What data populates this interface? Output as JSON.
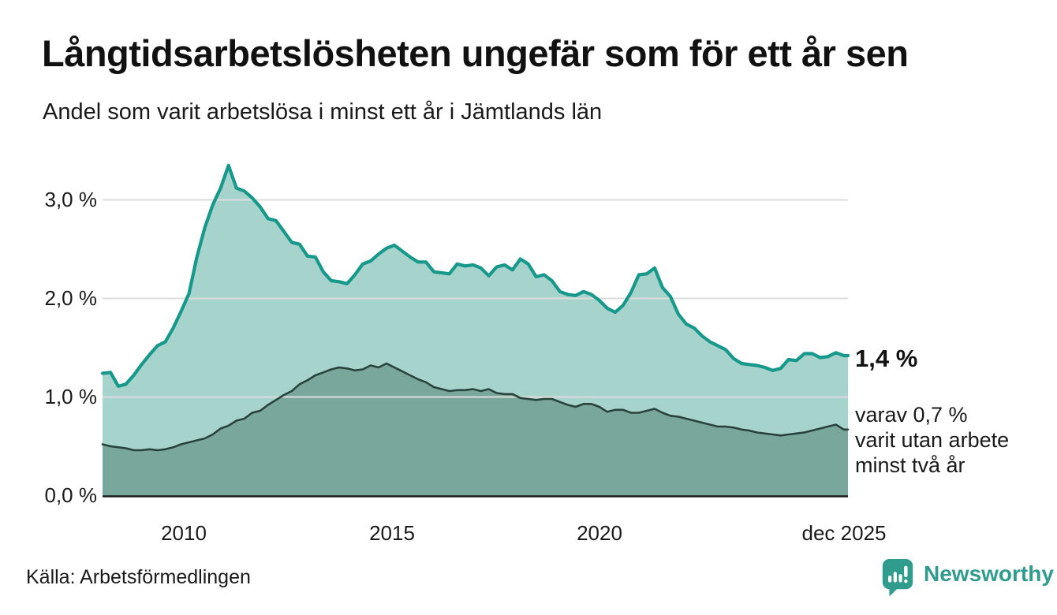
{
  "header": {
    "title": "Långtidsarbetslösheten ungefär som för ett år sen",
    "subtitle": "Andel som varit arbetslösa i minst ett år i Jämtlands län"
  },
  "annotations": {
    "latest_total": "1,4 %",
    "note_line1": "varav 0,7 %",
    "note_line2": "varit utan arbete",
    "note_line3": "minst två år"
  },
  "footer": {
    "source": "Källa: Arbetsförmedlingen",
    "brand": "Newsworthy",
    "brand_icon": "newsworthy-speech-bubble-barchart-icon"
  },
  "colors": {
    "total_line": "#16988a",
    "total_fill": "#a6d3cb",
    "two_year_line": "#28433c",
    "two_year_fill": "#7aa79c",
    "gridline": "#dcdcdc",
    "axis": "#1a1a1a",
    "brand": "#2f9c8e"
  },
  "chart_data": {
    "type": "area",
    "title": "Långtidsarbetslösheten ungefär som för ett år sen",
    "subtitle": "Andel som varit arbetslösa i minst ett år i Jämtlands län",
    "unit": "%",
    "grid": "horizontal",
    "legend": "none (direct end labels)",
    "x_domain": [
      2008.05,
      2025.98
    ],
    "y_domain": [
      0,
      3.5
    ],
    "x_ticks": [
      {
        "label": "2010",
        "year": 2010
      },
      {
        "label": "2015",
        "year": 2015
      },
      {
        "label": "2020",
        "year": 2020
      },
      {
        "label": "dec 2025",
        "year": 2025.88
      }
    ],
    "y_ticks": [
      {
        "label": "0,0 %",
        "value": 0
      },
      {
        "label": "1,0 %",
        "value": 1
      },
      {
        "label": "2,0 %",
        "value": 2
      },
      {
        "label": "3,0 %",
        "value": 3
      }
    ],
    "x_years": [
      2008.05,
      2008.24,
      2008.43,
      2008.61,
      2008.8,
      2008.99,
      2009.18,
      2009.37,
      2009.56,
      2009.75,
      2009.94,
      2010.13,
      2010.32,
      2010.51,
      2010.7,
      2010.89,
      2011.08,
      2011.27,
      2011.46,
      2011.65,
      2011.84,
      2012.03,
      2012.22,
      2012.41,
      2012.6,
      2012.79,
      2012.98,
      2013.17,
      2013.36,
      2013.55,
      2013.74,
      2013.93,
      2014.12,
      2014.31,
      2014.5,
      2014.69,
      2014.88,
      2015.07,
      2015.26,
      2015.45,
      2015.64,
      2015.83,
      2016.02,
      2016.21,
      2016.39,
      2016.58,
      2016.77,
      2016.96,
      2017.15,
      2017.34,
      2017.53,
      2017.72,
      2017.91,
      2018.1,
      2018.29,
      2018.48,
      2018.67,
      2018.86,
      2019.05,
      2019.24,
      2019.43,
      2019.62,
      2019.81,
      2020.0,
      2020.19,
      2020.38,
      2020.57,
      2020.76,
      2020.95,
      2021.14,
      2021.33,
      2021.52,
      2021.71,
      2021.9,
      2022.09,
      2022.28,
      2022.47,
      2022.66,
      2022.85,
      2023.04,
      2023.23,
      2023.42,
      2023.6,
      2023.79,
      2023.98,
      2024.17,
      2024.36,
      2024.55,
      2024.74,
      2024.93,
      2025.12,
      2025.31,
      2025.5,
      2025.69,
      2025.88,
      2025.98
    ],
    "series": [
      {
        "name": "Arbetslösa minst ett år",
        "end_value": 1.4,
        "end_label": "1,4 %",
        "values": [
          1.24,
          1.25,
          1.11,
          1.13,
          1.22,
          1.33,
          1.43,
          1.52,
          1.56,
          1.7,
          1.87,
          2.05,
          2.42,
          2.72,
          2.95,
          3.12,
          3.35,
          3.12,
          3.09,
          3.02,
          2.93,
          2.81,
          2.79,
          2.68,
          2.57,
          2.55,
          2.43,
          2.42,
          2.27,
          2.18,
          2.17,
          2.15,
          2.24,
          2.35,
          2.38,
          2.45,
          2.51,
          2.54,
          2.48,
          2.42,
          2.37,
          2.37,
          2.27,
          2.26,
          2.25,
          2.35,
          2.33,
          2.34,
          2.31,
          2.23,
          2.32,
          2.34,
          2.29,
          2.4,
          2.35,
          2.22,
          2.24,
          2.18,
          2.07,
          2.04,
          2.03,
          2.07,
          2.04,
          1.98,
          1.9,
          1.86,
          1.93,
          2.06,
          2.24,
          2.25,
          2.31,
          2.11,
          2.02,
          1.84,
          1.74,
          1.7,
          1.62,
          1.56,
          1.52,
          1.48,
          1.39,
          1.34,
          1.33,
          1.32,
          1.3,
          1.27,
          1.29,
          1.38,
          1.37,
          1.44,
          1.44,
          1.4,
          1.41,
          1.45,
          1.42,
          1.42
        ]
      },
      {
        "name": "Varav utan arbete minst två år",
        "end_value": 0.7,
        "end_label": "varav 0,7 % varit utan arbete minst två år",
        "values": [
          0.52,
          0.5,
          0.49,
          0.48,
          0.46,
          0.46,
          0.47,
          0.46,
          0.47,
          0.49,
          0.52,
          0.54,
          0.56,
          0.58,
          0.62,
          0.68,
          0.71,
          0.76,
          0.78,
          0.84,
          0.86,
          0.92,
          0.97,
          1.02,
          1.06,
          1.13,
          1.17,
          1.22,
          1.25,
          1.28,
          1.3,
          1.29,
          1.27,
          1.28,
          1.32,
          1.3,
          1.34,
          1.3,
          1.26,
          1.22,
          1.18,
          1.15,
          1.1,
          1.08,
          1.06,
          1.07,
          1.07,
          1.08,
          1.06,
          1.08,
          1.04,
          1.03,
          1.03,
          0.99,
          0.98,
          0.97,
          0.98,
          0.98,
          0.95,
          0.92,
          0.9,
          0.93,
          0.93,
          0.9,
          0.85,
          0.87,
          0.87,
          0.84,
          0.84,
          0.86,
          0.88,
          0.84,
          0.81,
          0.8,
          0.78,
          0.76,
          0.74,
          0.72,
          0.7,
          0.7,
          0.69,
          0.67,
          0.66,
          0.64,
          0.63,
          0.62,
          0.61,
          0.62,
          0.63,
          0.64,
          0.66,
          0.68,
          0.7,
          0.72,
          0.67,
          0.67
        ]
      }
    ]
  }
}
